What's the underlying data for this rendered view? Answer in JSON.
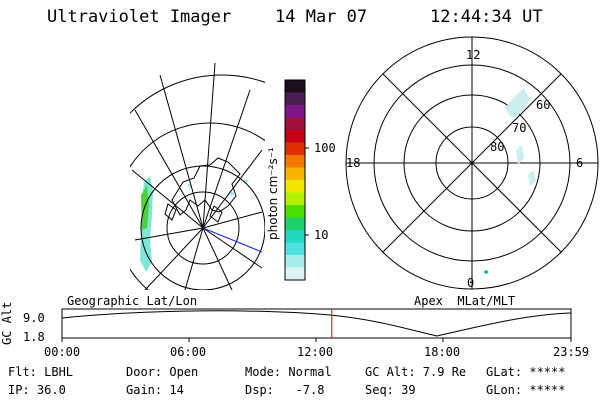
{
  "header": {
    "instrument": "Ultraviolet Imager",
    "date": "14 Mar 07",
    "time": "12:44:34 UT"
  },
  "colorbar": {
    "unit_label": "photon cm⁻²s⁻¹",
    "ticks": [
      "100",
      "10"
    ],
    "colors": [
      "#1a0f1a",
      "#4a1e52",
      "#80148a",
      "#a0103c",
      "#c80014",
      "#e03000",
      "#f07800",
      "#f8b400",
      "#f0e600",
      "#b4f000",
      "#4ce000",
      "#20d068",
      "#20d8c0",
      "#50e0e0",
      "#a8ecec",
      "#dcf4f4"
    ]
  },
  "polar_plot": {
    "mlt_labels": {
      "top": "12",
      "left": "18",
      "right": "6",
      "bottom": "0"
    },
    "lat_labels": [
      "60",
      "70",
      "80"
    ]
  },
  "timeline": {
    "left_title": "Geographic Lat/Lon",
    "right_title": "Apex  MLat/MLT",
    "axis_label": "GC Alt",
    "y_ticks": [
      "9.0",
      "1.8"
    ],
    "x_ticks": [
      "00:00",
      "06:00",
      "12:00",
      "18:00",
      "23:59"
    ],
    "current_time_fraction": 0.53,
    "marker_color": "#e00000"
  },
  "status": {
    "row1": [
      {
        "text": "Flt: LBHL"
      },
      {
        "text": "Door: Open"
      },
      {
        "text": "Mode: Normal"
      },
      {
        "text": "GC Alt: 7.9 Re"
      },
      {
        "text": "GLat: *****"
      }
    ],
    "row2": [
      {
        "text": "IP: 36.0"
      },
      {
        "text": "Gain: 14"
      },
      {
        "text": "Dsp:   -7.8"
      },
      {
        "text": "Seq: 39"
      },
      {
        "text": "GLon: *****"
      }
    ]
  }
}
